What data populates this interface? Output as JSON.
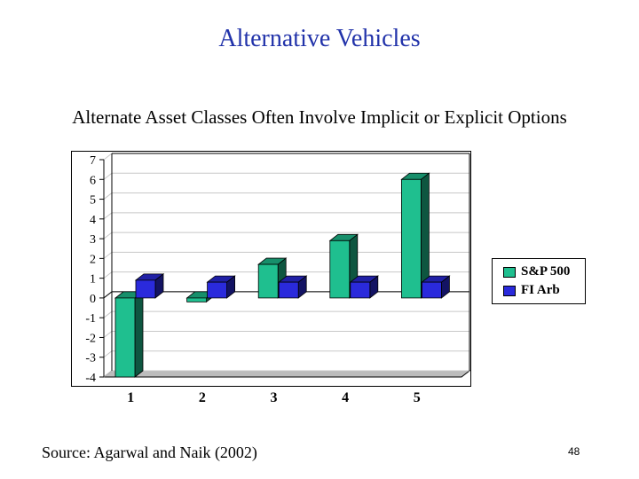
{
  "slide": {
    "title": "Alternative Vehicles",
    "subtitle": "Alternate Asset Classes Often Involve Implicit or Explicit Options",
    "source": "Source: Agarwal and Naik (2002)",
    "page_number": "48"
  },
  "colors": {
    "title": "#2233aa",
    "sp500": "#1fbf8f",
    "fi_arb": "#2a2adc"
  },
  "chart_data": {
    "type": "bar",
    "categories": [
      "1",
      "2",
      "3",
      "4",
      "5"
    ],
    "series": [
      {
        "name": "S&P 500",
        "values": [
          -4.0,
          -0.2,
          1.7,
          2.9,
          6.0
        ]
      },
      {
        "name": "FI Arb",
        "values": [
          0.9,
          0.8,
          0.8,
          0.8,
          0.8
        ]
      }
    ],
    "y_ticks": [
      "7",
      "6",
      "5",
      "4",
      "3",
      "2",
      "1",
      "0",
      "-1",
      "-2",
      "-3",
      "-4"
    ],
    "ylim": [
      -4,
      7
    ],
    "grid": true,
    "legend": "right"
  }
}
